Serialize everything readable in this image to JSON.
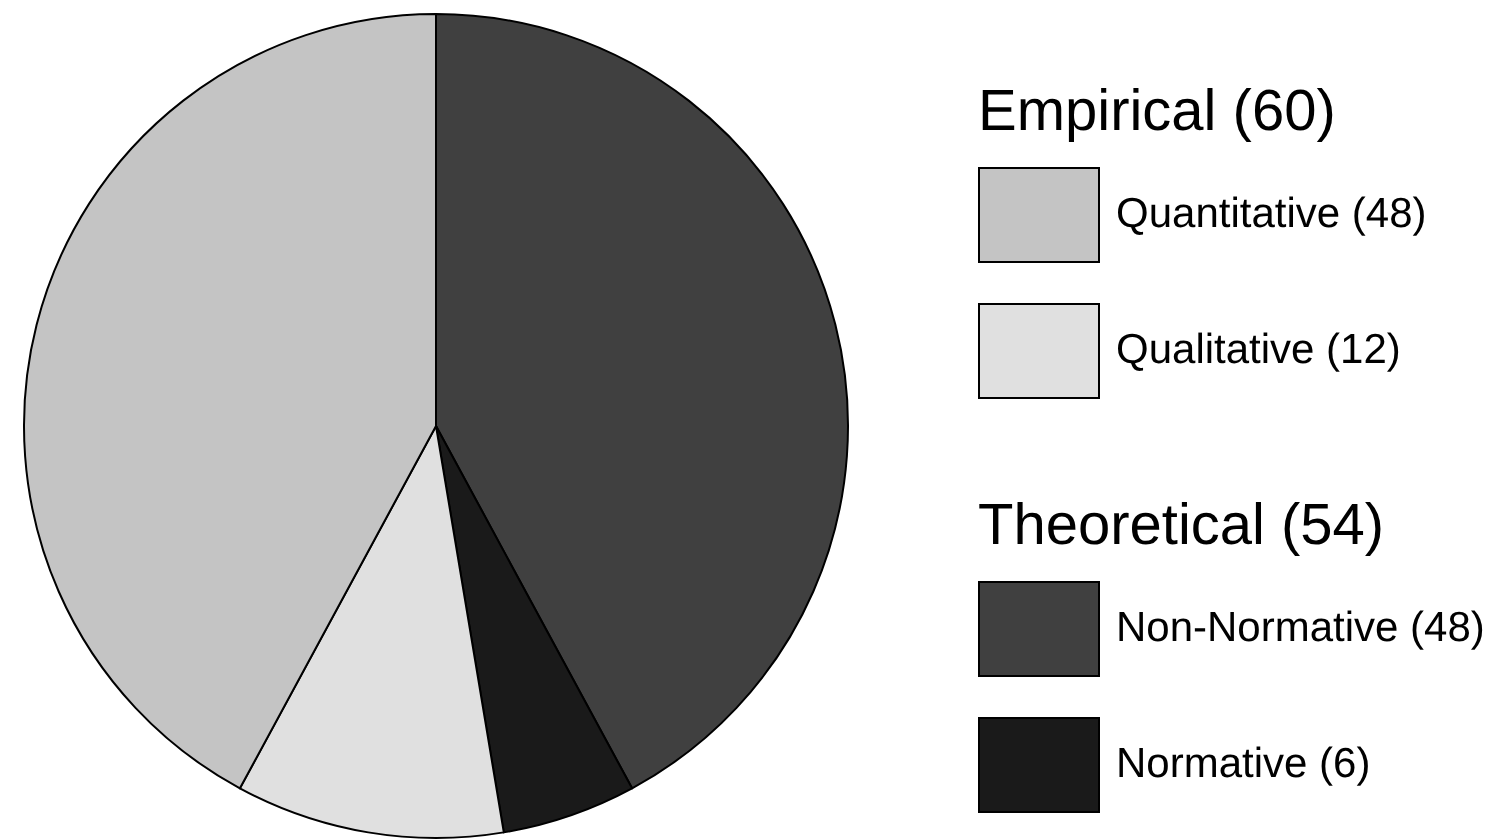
{
  "chart_data": {
    "type": "pie",
    "categories": [
      "Non-Normative (48)",
      "Normative (6)",
      "Qualitative (12)",
      "Quantitative (48)"
    ],
    "values": [
      48,
      6,
      12,
      48
    ],
    "colors": [
      "#404040",
      "#1a1a1a",
      "#e0e0e0",
      "#c4c4c4"
    ],
    "legend": "right",
    "annotations": [
      "Empirical (60)",
      "Theoretical (54)"
    ]
  }
}
